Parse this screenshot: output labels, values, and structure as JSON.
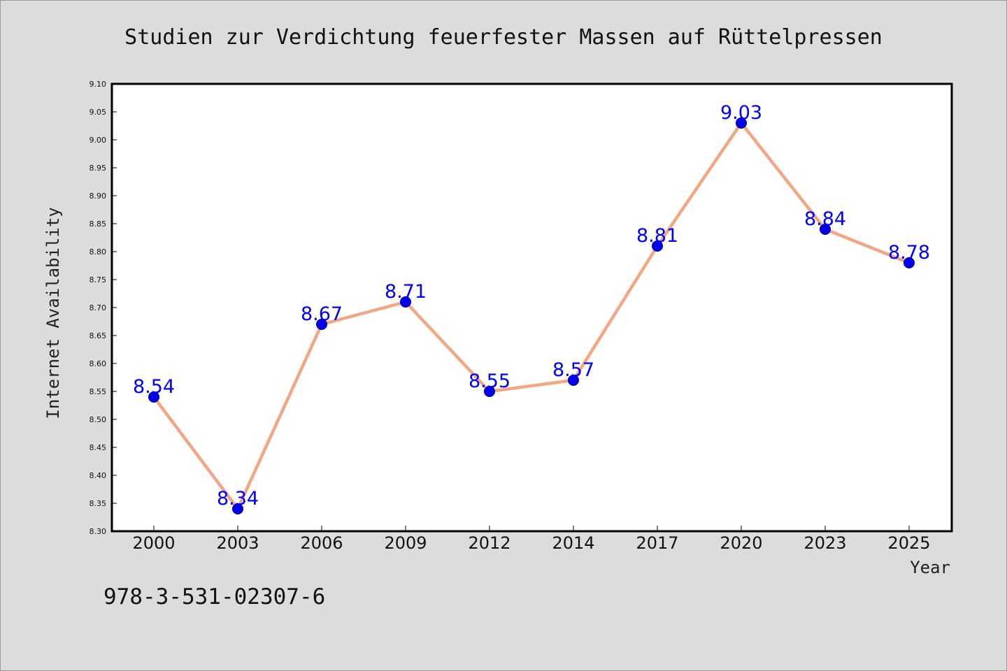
{
  "chart_data": {
    "type": "line",
    "title": "Studien zur Verdichtung feuerfester Massen auf Rüttelpressen",
    "xlabel": "Year",
    "ylabel": "Internet Availability",
    "categories": [
      "2000",
      "2003",
      "2006",
      "2009",
      "2012",
      "2014",
      "2017",
      "2020",
      "2023",
      "2025"
    ],
    "series": [
      {
        "values": [
          8.54,
          8.34,
          8.67,
          8.71,
          8.55,
          8.57,
          8.81,
          9.03,
          8.84,
          8.78
        ],
        "labels": [
          "8.54",
          "8.34",
          "8.67",
          "8.71",
          "8.55",
          "8.57",
          "8.81",
          "9.03",
          "8.84",
          "8.78"
        ]
      }
    ],
    "ylim": [
      8.3,
      9.1
    ],
    "yticks": [
      "8.30",
      "8.35",
      "8.40",
      "8.45",
      "8.50",
      "8.55",
      "8.60",
      "8.65",
      "8.70",
      "8.75",
      "8.80",
      "8.85",
      "8.90",
      "8.95",
      "9.00",
      "9.05",
      "9.10"
    ],
    "grid": false,
    "legend": "none",
    "colors": {
      "line": "#f4a582",
      "marker": "#0000ee",
      "marker_edge": "#00007a",
      "label": "#0000ff",
      "background": "#dcdcdc",
      "plot_background": "#ffffff"
    }
  },
  "annotation": {
    "isbn": "978-3-531-02307-6"
  }
}
